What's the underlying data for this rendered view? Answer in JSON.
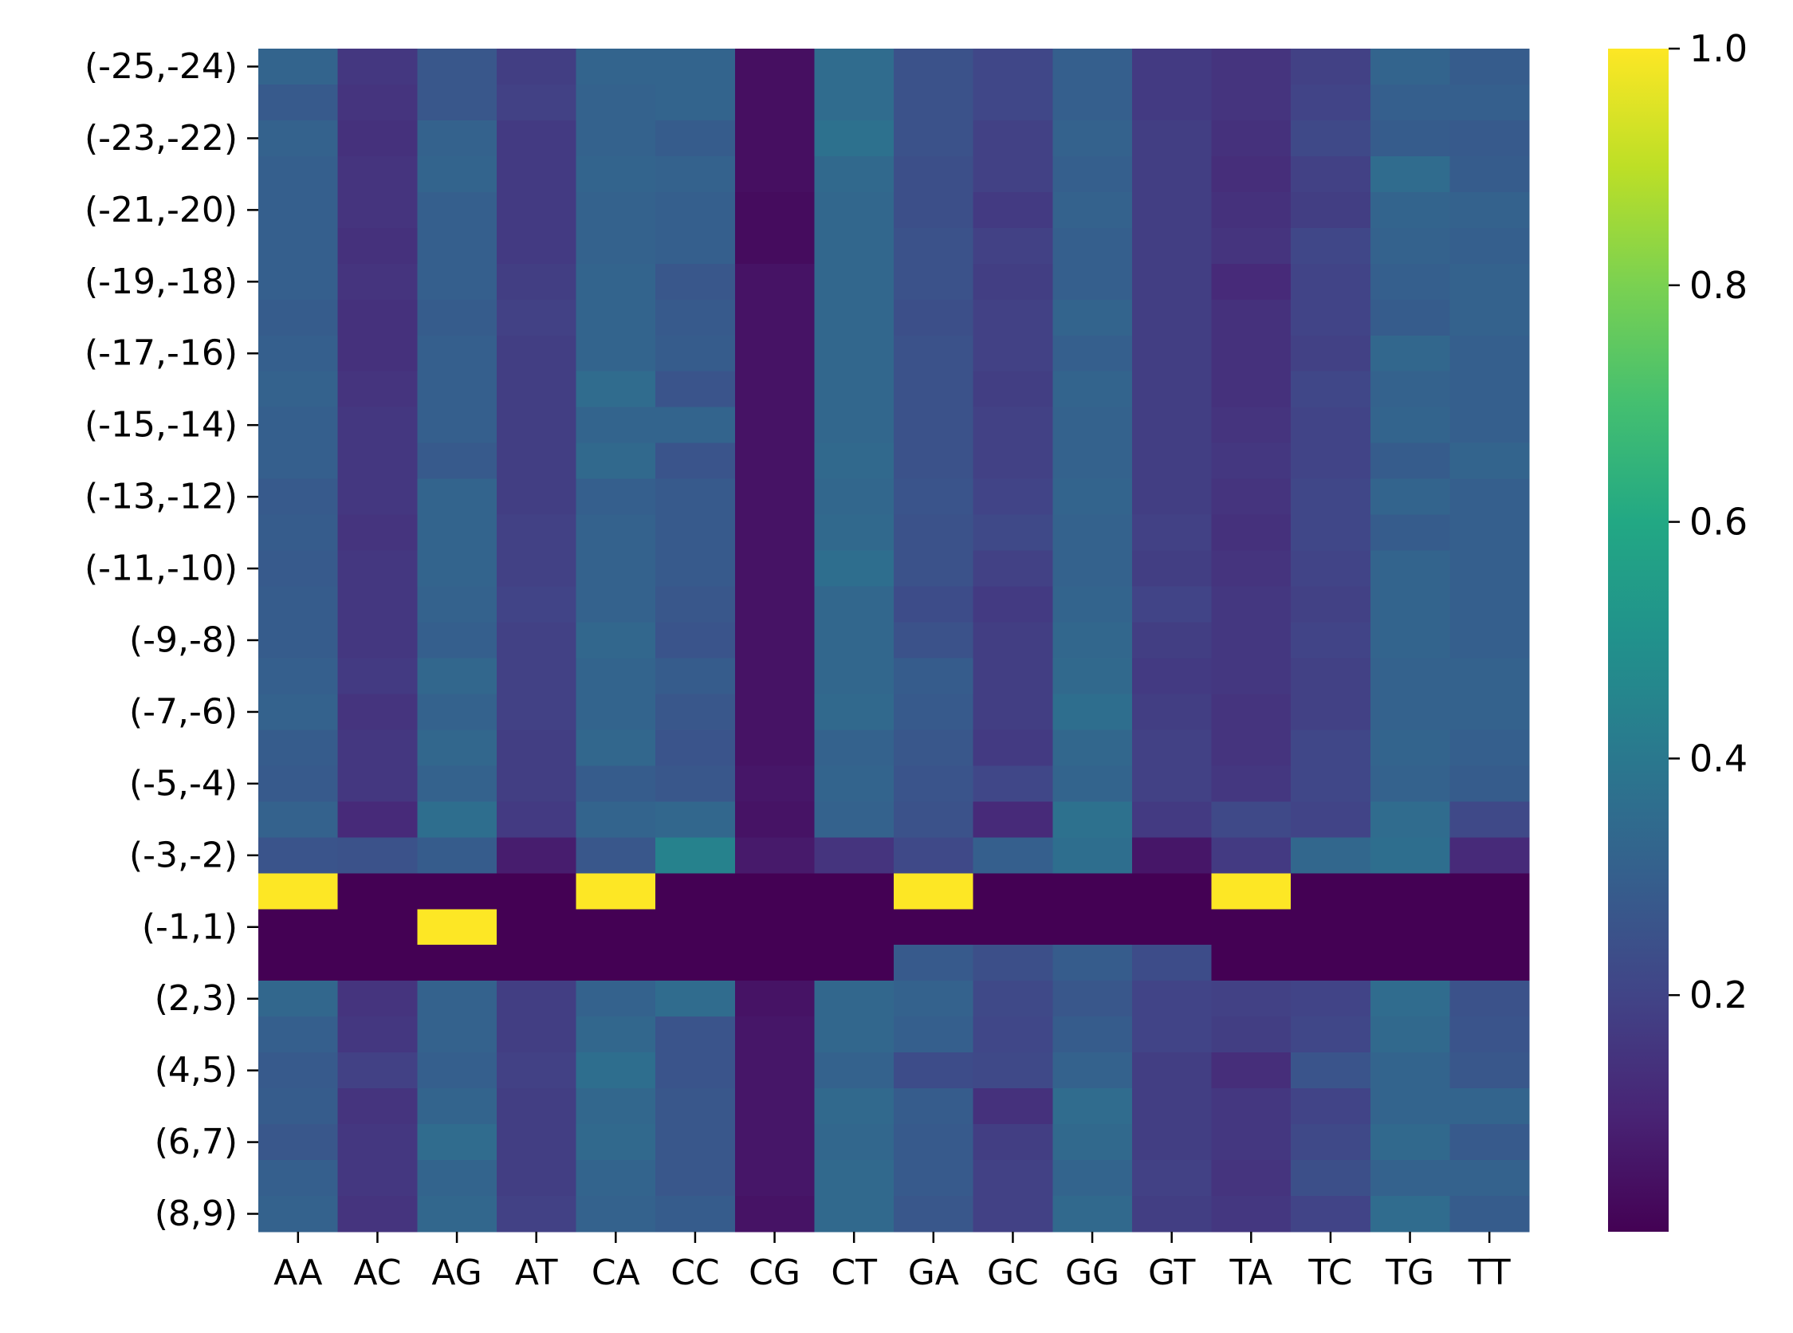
{
  "chart_data": {
    "type": "heatmap",
    "title": "",
    "xlabel": "",
    "ylabel": "",
    "x_categories": [
      "AA",
      "AC",
      "AG",
      "AT",
      "CA",
      "CC",
      "CG",
      "CT",
      "GA",
      "GC",
      "GG",
      "GT",
      "TA",
      "TC",
      "TG",
      "TT"
    ],
    "y_labeled_ticks": [
      "(-25,-24)",
      "(-23,-22)",
      "(-21,-20)",
      "(-19,-18)",
      "(-17,-16)",
      "(-15,-14)",
      "(-13,-12)",
      "(-11,-10)",
      "(-9,-8)",
      "(-7,-6)",
      "(-5,-4)",
      "(-3,-2)",
      "(-1,1)",
      "(2,3)",
      "(4,5)",
      "(6,7)",
      "(8,9)"
    ],
    "n_rows": 33,
    "values": [
      [
        0.32,
        0.16,
        0.27,
        0.18,
        0.32,
        0.32,
        0.04,
        0.35,
        0.25,
        0.21,
        0.3,
        0.17,
        0.15,
        0.19,
        0.32,
        0.29
      ],
      [
        0.28,
        0.15,
        0.27,
        0.19,
        0.31,
        0.32,
        0.04,
        0.35,
        0.25,
        0.21,
        0.3,
        0.17,
        0.15,
        0.2,
        0.3,
        0.3
      ],
      [
        0.31,
        0.14,
        0.31,
        0.17,
        0.31,
        0.29,
        0.04,
        0.37,
        0.25,
        0.19,
        0.31,
        0.18,
        0.14,
        0.22,
        0.29,
        0.28
      ],
      [
        0.3,
        0.15,
        0.32,
        0.17,
        0.32,
        0.31,
        0.04,
        0.34,
        0.24,
        0.19,
        0.3,
        0.18,
        0.13,
        0.19,
        0.35,
        0.29
      ],
      [
        0.3,
        0.15,
        0.3,
        0.17,
        0.31,
        0.3,
        0.03,
        0.33,
        0.24,
        0.17,
        0.31,
        0.18,
        0.14,
        0.18,
        0.32,
        0.31
      ],
      [
        0.3,
        0.14,
        0.3,
        0.17,
        0.31,
        0.3,
        0.03,
        0.33,
        0.25,
        0.19,
        0.3,
        0.18,
        0.15,
        0.21,
        0.31,
        0.3
      ],
      [
        0.3,
        0.15,
        0.3,
        0.18,
        0.32,
        0.27,
        0.05,
        0.33,
        0.25,
        0.18,
        0.3,
        0.18,
        0.12,
        0.2,
        0.3,
        0.31
      ],
      [
        0.29,
        0.14,
        0.29,
        0.19,
        0.32,
        0.28,
        0.05,
        0.33,
        0.24,
        0.19,
        0.32,
        0.18,
        0.14,
        0.2,
        0.29,
        0.31
      ],
      [
        0.3,
        0.14,
        0.3,
        0.18,
        0.32,
        0.29,
        0.05,
        0.33,
        0.25,
        0.19,
        0.3,
        0.18,
        0.14,
        0.19,
        0.33,
        0.3
      ],
      [
        0.31,
        0.15,
        0.3,
        0.18,
        0.35,
        0.26,
        0.05,
        0.33,
        0.25,
        0.18,
        0.32,
        0.18,
        0.14,
        0.21,
        0.31,
        0.3
      ],
      [
        0.3,
        0.16,
        0.3,
        0.18,
        0.32,
        0.32,
        0.05,
        0.33,
        0.25,
        0.19,
        0.31,
        0.18,
        0.15,
        0.2,
        0.32,
        0.3
      ],
      [
        0.3,
        0.16,
        0.28,
        0.18,
        0.34,
        0.26,
        0.05,
        0.34,
        0.25,
        0.19,
        0.31,
        0.18,
        0.16,
        0.2,
        0.29,
        0.32
      ],
      [
        0.28,
        0.16,
        0.32,
        0.18,
        0.3,
        0.28,
        0.05,
        0.33,
        0.26,
        0.2,
        0.32,
        0.18,
        0.15,
        0.21,
        0.32,
        0.3
      ],
      [
        0.29,
        0.15,
        0.32,
        0.19,
        0.31,
        0.28,
        0.05,
        0.34,
        0.25,
        0.22,
        0.31,
        0.19,
        0.14,
        0.21,
        0.29,
        0.3
      ],
      [
        0.28,
        0.16,
        0.32,
        0.19,
        0.31,
        0.28,
        0.05,
        0.36,
        0.25,
        0.19,
        0.31,
        0.18,
        0.15,
        0.2,
        0.32,
        0.3
      ],
      [
        0.29,
        0.16,
        0.31,
        0.2,
        0.31,
        0.27,
        0.05,
        0.33,
        0.23,
        0.17,
        0.32,
        0.2,
        0.16,
        0.19,
        0.32,
        0.3
      ],
      [
        0.29,
        0.16,
        0.3,
        0.19,
        0.33,
        0.26,
        0.05,
        0.33,
        0.25,
        0.18,
        0.33,
        0.18,
        0.16,
        0.2,
        0.32,
        0.3
      ],
      [
        0.3,
        0.17,
        0.33,
        0.19,
        0.32,
        0.29,
        0.05,
        0.33,
        0.29,
        0.18,
        0.34,
        0.17,
        0.16,
        0.19,
        0.31,
        0.31
      ],
      [
        0.31,
        0.15,
        0.31,
        0.19,
        0.32,
        0.27,
        0.05,
        0.34,
        0.28,
        0.18,
        0.36,
        0.18,
        0.15,
        0.19,
        0.31,
        0.31
      ],
      [
        0.29,
        0.16,
        0.33,
        0.18,
        0.33,
        0.26,
        0.05,
        0.31,
        0.27,
        0.17,
        0.33,
        0.19,
        0.15,
        0.21,
        0.32,
        0.3
      ],
      [
        0.28,
        0.16,
        0.31,
        0.18,
        0.29,
        0.27,
        0.06,
        0.32,
        0.26,
        0.21,
        0.32,
        0.19,
        0.16,
        0.21,
        0.31,
        0.29
      ],
      [
        0.31,
        0.12,
        0.36,
        0.17,
        0.32,
        0.33,
        0.05,
        0.31,
        0.25,
        0.12,
        0.37,
        0.17,
        0.22,
        0.2,
        0.35,
        0.22
      ],
      [
        0.26,
        0.25,
        0.29,
        0.08,
        0.27,
        0.44,
        0.07,
        0.15,
        0.22,
        0.3,
        0.36,
        0.06,
        0.17,
        0.33,
        0.36,
        0.12
      ],
      [
        1.0,
        0.0,
        0.0,
        0.0,
        1.0,
        0.0,
        0.0,
        0.0,
        1.0,
        0.0,
        0.0,
        0.0,
        1.0,
        0.0,
        0.0,
        0.0
      ],
      [
        0.0,
        0.0,
        1.0,
        0.0,
        0.0,
        0.0,
        0.0,
        0.0,
        0.0,
        0.0,
        0.0,
        0.0,
        0.0,
        0.0,
        0.0,
        0.0
      ],
      [
        0.0,
        0.0,
        0.0,
        0.0,
        0.0,
        0.0,
        0.0,
        0.0,
        0.28,
        0.24,
        0.29,
        0.23,
        0.0,
        0.0,
        0.0,
        0.0
      ],
      [
        0.33,
        0.15,
        0.31,
        0.18,
        0.31,
        0.35,
        0.05,
        0.33,
        0.31,
        0.22,
        0.27,
        0.2,
        0.19,
        0.2,
        0.35,
        0.25
      ],
      [
        0.3,
        0.16,
        0.31,
        0.18,
        0.33,
        0.26,
        0.06,
        0.33,
        0.3,
        0.21,
        0.29,
        0.2,
        0.18,
        0.21,
        0.34,
        0.26
      ],
      [
        0.28,
        0.19,
        0.3,
        0.19,
        0.36,
        0.26,
        0.06,
        0.31,
        0.23,
        0.22,
        0.31,
        0.18,
        0.13,
        0.26,
        0.32,
        0.27
      ],
      [
        0.29,
        0.15,
        0.32,
        0.18,
        0.33,
        0.27,
        0.06,
        0.34,
        0.29,
        0.14,
        0.35,
        0.18,
        0.16,
        0.2,
        0.32,
        0.32
      ],
      [
        0.27,
        0.16,
        0.35,
        0.18,
        0.34,
        0.27,
        0.06,
        0.33,
        0.28,
        0.18,
        0.34,
        0.18,
        0.16,
        0.22,
        0.34,
        0.28
      ],
      [
        0.3,
        0.16,
        0.32,
        0.18,
        0.32,
        0.27,
        0.06,
        0.34,
        0.28,
        0.19,
        0.32,
        0.19,
        0.15,
        0.24,
        0.31,
        0.31
      ],
      [
        0.31,
        0.15,
        0.33,
        0.19,
        0.31,
        0.29,
        0.05,
        0.34,
        0.27,
        0.19,
        0.34,
        0.18,
        0.16,
        0.2,
        0.35,
        0.29
      ]
    ],
    "vmin": 0.0,
    "vmax": 1.0,
    "colormap": "viridis",
    "colorbar_ticks": [
      "0.2",
      "0.4",
      "0.6",
      "0.8",
      "1.0"
    ],
    "colorbar_tick_values": [
      0.2,
      0.4,
      0.6,
      0.8,
      1.0
    ],
    "grid": false
  }
}
